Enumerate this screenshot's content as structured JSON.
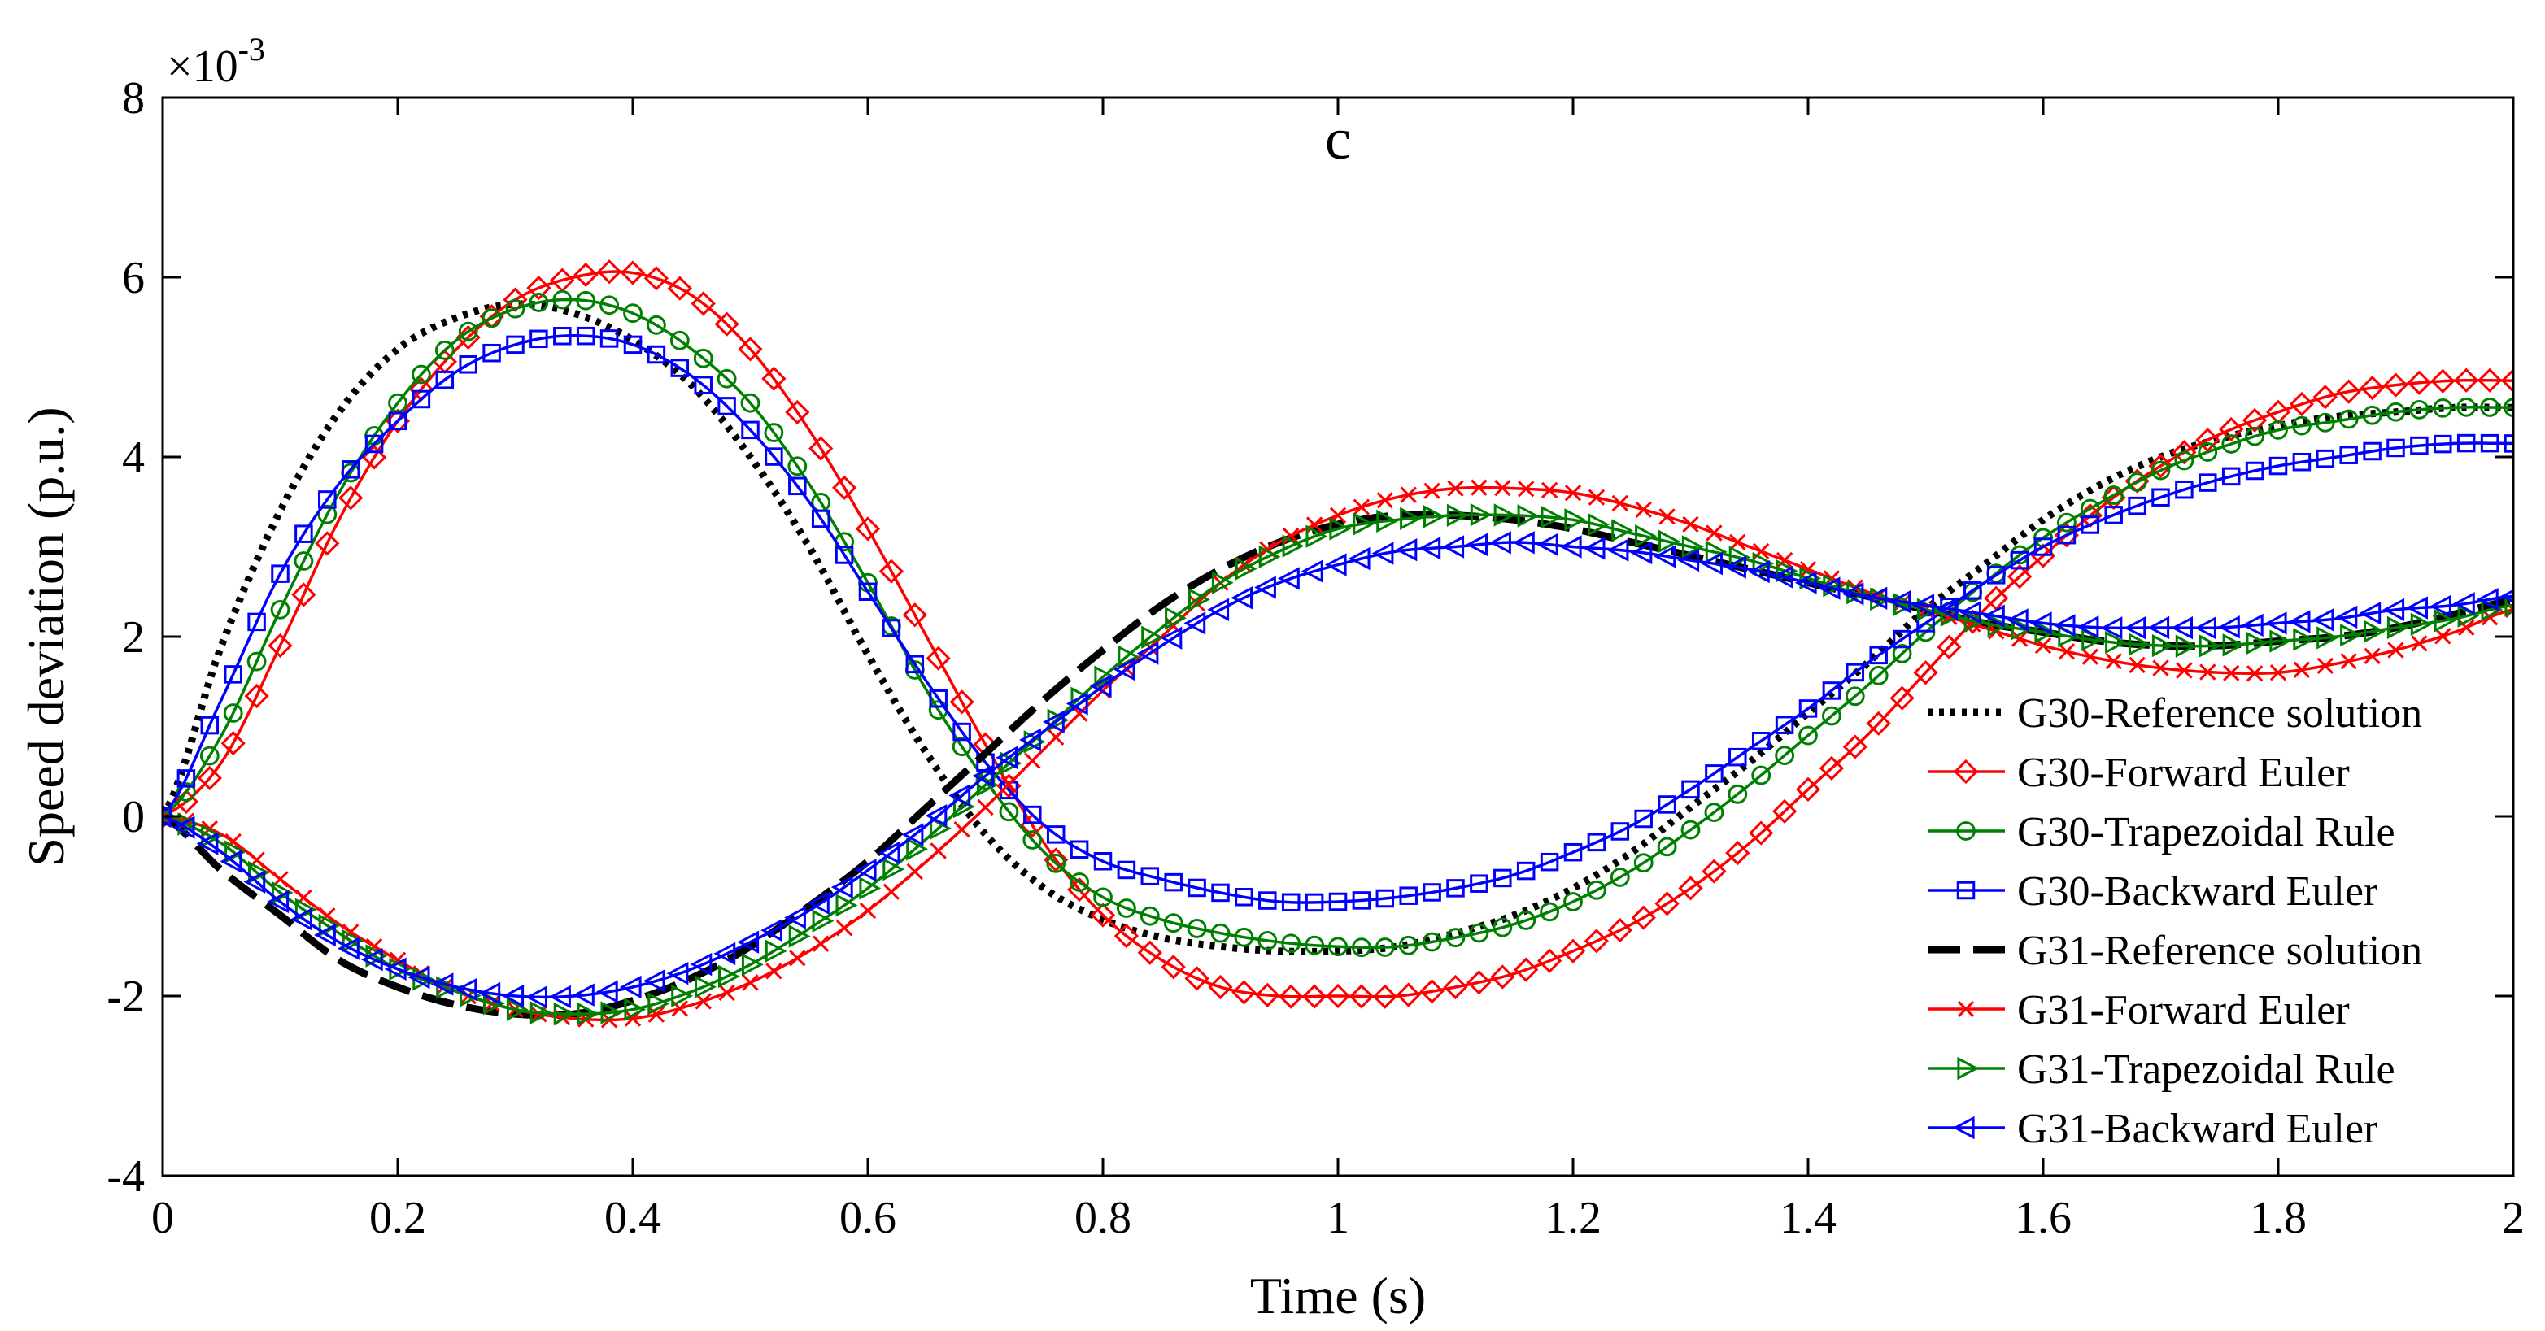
{
  "chart_data": {
    "type": "line",
    "title": "c",
    "xlabel": "Time (s)",
    "ylabel": "Speed deviation (p.u.)",
    "y_exponent_base": "×10",
    "y_exponent_power": "-3",
    "xlim": [
      0,
      2
    ],
    "ylim": [
      -4,
      8
    ],
    "x_ticks": [
      "0",
      "0.2",
      "0.4",
      "0.6",
      "0.8",
      "1",
      "1.2",
      "1.4",
      "1.6",
      "1.8",
      "2"
    ],
    "y_ticks": [
      "-4",
      "-2",
      "0",
      "2",
      "4",
      "6",
      "8"
    ],
    "grid": false,
    "legend_position": "right",
    "series": [
      {
        "name": "G30-Reference solution",
        "color": "#000000",
        "style": "dotted",
        "marker": "none",
        "x": [
          0,
          0.05,
          0.1,
          0.15,
          0.2,
          0.25,
          0.3,
          0.35,
          0.4,
          0.45,
          0.5,
          0.55,
          0.6,
          0.65,
          0.7,
          0.75,
          0.8,
          0.85,
          0.9,
          0.95,
          1.0,
          1.05,
          1.1,
          1.15,
          1.2,
          1.25,
          1.3,
          1.35,
          1.4,
          1.45,
          1.5,
          1.55,
          1.6,
          1.65,
          1.7,
          1.75,
          1.8,
          1.85,
          1.9,
          1.95,
          2.0
        ],
        "y": [
          0,
          1.9,
          3.4,
          4.5,
          5.2,
          5.55,
          5.7,
          5.6,
          5.3,
          4.8,
          4.0,
          3.0,
          1.8,
          0.7,
          -0.2,
          -0.8,
          -1.15,
          -1.35,
          -1.45,
          -1.5,
          -1.5,
          -1.45,
          -1.3,
          -1.1,
          -0.8,
          -0.4,
          0.1,
          0.6,
          1.15,
          1.7,
          2.3,
          2.8,
          3.3,
          3.7,
          4.0,
          4.2,
          4.35,
          4.45,
          4.5,
          4.55,
          4.55
        ]
      },
      {
        "name": "G30-Forward Euler",
        "color": "#ff0000",
        "style": "solid",
        "marker": "diamond",
        "x": [
          0,
          0.05,
          0.1,
          0.15,
          0.2,
          0.25,
          0.3,
          0.35,
          0.4,
          0.45,
          0.5,
          0.55,
          0.6,
          0.65,
          0.7,
          0.75,
          0.8,
          0.85,
          0.9,
          0.95,
          1.0,
          1.05,
          1.1,
          1.15,
          1.2,
          1.25,
          1.3,
          1.35,
          1.4,
          1.45,
          1.5,
          1.55,
          1.6,
          1.65,
          1.7,
          1.75,
          1.8,
          1.85,
          1.9,
          1.95,
          2.0
        ],
        "y": [
          0,
          0.6,
          1.9,
          3.3,
          4.4,
          5.2,
          5.75,
          6.0,
          6.05,
          5.8,
          5.2,
          4.3,
          3.2,
          2.0,
          0.8,
          -0.3,
          -1.1,
          -1.6,
          -1.9,
          -2.0,
          -2.0,
          -2.0,
          -1.9,
          -1.75,
          -1.5,
          -1.2,
          -0.8,
          -0.3,
          0.3,
          0.9,
          1.6,
          2.3,
          2.9,
          3.45,
          3.9,
          4.25,
          4.5,
          4.7,
          4.8,
          4.85,
          4.85
        ]
      },
      {
        "name": "G30-Trapezoidal Rule",
        "color": "#008000",
        "style": "solid",
        "marker": "circle",
        "x": [
          0,
          0.05,
          0.1,
          0.15,
          0.2,
          0.25,
          0.3,
          0.35,
          0.4,
          0.45,
          0.5,
          0.55,
          0.6,
          0.65,
          0.7,
          0.75,
          0.8,
          0.85,
          0.9,
          0.95,
          1.0,
          1.05,
          1.1,
          1.15,
          1.2,
          1.25,
          1.3,
          1.35,
          1.4,
          1.45,
          1.5,
          1.55,
          1.6,
          1.65,
          1.7,
          1.75,
          1.8,
          1.85,
          1.9,
          1.95,
          2.0
        ],
        "y": [
          0,
          0.9,
          2.3,
          3.6,
          4.6,
          5.3,
          5.65,
          5.75,
          5.6,
          5.2,
          4.6,
          3.7,
          2.6,
          1.4,
          0.4,
          -0.4,
          -0.9,
          -1.15,
          -1.3,
          -1.4,
          -1.45,
          -1.45,
          -1.35,
          -1.2,
          -0.95,
          -0.6,
          -0.15,
          0.35,
          0.9,
          1.45,
          2.05,
          2.6,
          3.1,
          3.5,
          3.85,
          4.1,
          4.3,
          4.4,
          4.5,
          4.55,
          4.55
        ]
      },
      {
        "name": "G30-Backward Euler",
        "color": "#0000ff",
        "style": "solid",
        "marker": "square",
        "x": [
          0,
          0.05,
          0.1,
          0.15,
          0.2,
          0.25,
          0.3,
          0.35,
          0.4,
          0.45,
          0.5,
          0.55,
          0.6,
          0.65,
          0.7,
          0.75,
          0.8,
          0.85,
          0.9,
          0.95,
          1.0,
          1.05,
          1.1,
          1.15,
          1.2,
          1.25,
          1.3,
          1.35,
          1.4,
          1.45,
          1.5,
          1.55,
          1.6,
          1.65,
          1.7,
          1.75,
          1.8,
          1.85,
          1.9,
          1.95,
          2.0
        ],
        "y": [
          0,
          1.3,
          2.7,
          3.7,
          4.4,
          4.95,
          5.25,
          5.35,
          5.25,
          4.9,
          4.3,
          3.5,
          2.5,
          1.5,
          0.6,
          -0.1,
          -0.5,
          -0.7,
          -0.85,
          -0.95,
          -0.95,
          -0.9,
          -0.8,
          -0.65,
          -0.4,
          -0.1,
          0.3,
          0.75,
          1.2,
          1.7,
          2.15,
          2.6,
          3.0,
          3.3,
          3.55,
          3.75,
          3.9,
          4.0,
          4.1,
          4.15,
          4.15
        ]
      },
      {
        "name": "G31-Reference solution",
        "color": "#000000",
        "style": "dashed",
        "marker": "none",
        "x": [
          0,
          0.05,
          0.1,
          0.15,
          0.2,
          0.25,
          0.3,
          0.35,
          0.4,
          0.45,
          0.5,
          0.55,
          0.6,
          0.65,
          0.7,
          0.75,
          0.8,
          0.85,
          0.9,
          0.95,
          1.0,
          1.05,
          1.1,
          1.15,
          1.2,
          1.25,
          1.3,
          1.35,
          1.4,
          1.45,
          1.5,
          1.55,
          1.6,
          1.65,
          1.7,
          1.75,
          1.8,
          1.85,
          1.9,
          1.95,
          2.0
        ],
        "y": [
          0,
          -0.6,
          -1.1,
          -1.6,
          -1.9,
          -2.1,
          -2.2,
          -2.2,
          -2.05,
          -1.8,
          -1.45,
          -1.0,
          -0.5,
          0.1,
          0.7,
          1.3,
          1.85,
          2.35,
          2.75,
          3.05,
          3.25,
          3.35,
          3.35,
          3.3,
          3.2,
          3.05,
          2.9,
          2.75,
          2.6,
          2.45,
          2.3,
          2.15,
          2.05,
          1.95,
          1.9,
          1.9,
          1.95,
          2.0,
          2.1,
          2.25,
          2.4
        ]
      },
      {
        "name": "G31-Forward Euler",
        "color": "#ff0000",
        "style": "solid",
        "marker": "x",
        "x": [
          0,
          0.05,
          0.1,
          0.15,
          0.2,
          0.25,
          0.3,
          0.35,
          0.4,
          0.45,
          0.5,
          0.55,
          0.6,
          0.65,
          0.7,
          0.75,
          0.8,
          0.85,
          0.9,
          0.95,
          1.0,
          1.05,
          1.1,
          1.15,
          1.2,
          1.25,
          1.3,
          1.35,
          1.4,
          1.45,
          1.5,
          1.55,
          1.6,
          1.65,
          1.7,
          1.75,
          1.8,
          1.85,
          1.9,
          1.95,
          2.0
        ],
        "y": [
          0,
          -0.2,
          -0.7,
          -1.2,
          -1.6,
          -1.95,
          -2.15,
          -2.25,
          -2.25,
          -2.1,
          -1.85,
          -1.5,
          -1.05,
          -0.5,
          0.1,
          0.75,
          1.4,
          2.0,
          2.6,
          3.05,
          3.35,
          3.55,
          3.65,
          3.65,
          3.6,
          3.45,
          3.25,
          3.0,
          2.75,
          2.5,
          2.3,
          2.1,
          1.9,
          1.75,
          1.65,
          1.6,
          1.6,
          1.7,
          1.85,
          2.05,
          2.3
        ]
      },
      {
        "name": "G31-Trapezoidal Rule",
        "color": "#008000",
        "style": "solid",
        "marker": "triangle-right",
        "x": [
          0,
          0.05,
          0.1,
          0.15,
          0.2,
          0.25,
          0.3,
          0.35,
          0.4,
          0.45,
          0.5,
          0.55,
          0.6,
          0.65,
          0.7,
          0.75,
          0.8,
          0.85,
          0.9,
          0.95,
          1.0,
          1.05,
          1.1,
          1.15,
          1.2,
          1.25,
          1.3,
          1.35,
          1.4,
          1.45,
          1.5,
          1.55,
          1.6,
          1.65,
          1.7,
          1.75,
          1.8,
          1.85,
          1.9,
          1.95,
          2.0
        ],
        "y": [
          0,
          -0.3,
          -0.85,
          -1.3,
          -1.7,
          -1.95,
          -2.15,
          -2.2,
          -2.15,
          -1.95,
          -1.65,
          -1.25,
          -0.8,
          -0.25,
          0.35,
          0.95,
          1.55,
          2.1,
          2.6,
          2.95,
          3.2,
          3.3,
          3.35,
          3.35,
          3.3,
          3.15,
          3.0,
          2.85,
          2.65,
          2.45,
          2.3,
          2.15,
          2.05,
          1.95,
          1.9,
          1.9,
          1.95,
          2.0,
          2.1,
          2.2,
          2.35
        ]
      },
      {
        "name": "G31-Backward Euler",
        "color": "#0000ff",
        "style": "solid",
        "marker": "triangle-left",
        "x": [
          0,
          0.05,
          0.1,
          0.15,
          0.2,
          0.25,
          0.3,
          0.35,
          0.4,
          0.45,
          0.5,
          0.55,
          0.6,
          0.65,
          0.7,
          0.75,
          0.8,
          0.85,
          0.9,
          0.95,
          1.0,
          1.05,
          1.1,
          1.15,
          1.2,
          1.25,
          1.3,
          1.35,
          1.4,
          1.45,
          1.5,
          1.55,
          1.6,
          1.65,
          1.7,
          1.75,
          1.8,
          1.85,
          1.9,
          1.95,
          2.0
        ],
        "y": [
          0,
          -0.4,
          -0.95,
          -1.4,
          -1.7,
          -1.9,
          -2.0,
          -2.0,
          -1.9,
          -1.7,
          -1.4,
          -1.05,
          -0.6,
          -0.1,
          0.45,
          0.95,
          1.45,
          1.9,
          2.3,
          2.6,
          2.8,
          2.95,
          3.0,
          3.05,
          3.0,
          2.95,
          2.85,
          2.75,
          2.6,
          2.45,
          2.35,
          2.25,
          2.15,
          2.1,
          2.1,
          2.1,
          2.15,
          2.2,
          2.3,
          2.35,
          2.45
        ]
      }
    ]
  }
}
